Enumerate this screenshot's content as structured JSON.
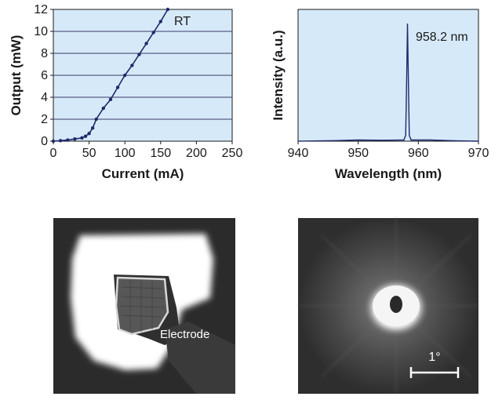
{
  "chart_data": [
    {
      "type": "line",
      "xlabel": "Current (mA)",
      "ylabel": "Output (mW)",
      "xlim": [
        0,
        250
      ],
      "ylim": [
        0,
        12
      ],
      "xticks": [
        0,
        50,
        100,
        150,
        200,
        250
      ],
      "yticks": [
        0,
        2,
        4,
        6,
        8,
        10,
        12
      ],
      "grid": "horizontal",
      "annotation": "RT",
      "colors": {
        "background": "#d6e9f8",
        "line": "#1f2a6b",
        "grid": "#3a3a6a"
      },
      "series": [
        {
          "x": [
            0,
            10,
            20,
            30,
            40,
            45,
            50,
            55,
            60,
            70,
            80,
            90,
            100,
            110,
            120,
            130,
            140,
            150,
            160
          ],
          "y": [
            0,
            0.05,
            0.1,
            0.2,
            0.3,
            0.45,
            0.7,
            1.2,
            2.0,
            3.0,
            3.8,
            4.9,
            6.0,
            6.9,
            7.9,
            8.9,
            9.9,
            10.9,
            12.0
          ]
        }
      ]
    },
    {
      "type": "line",
      "xlabel": "Wavelength (nm)",
      "ylabel": "Intensity (a.u.)",
      "xlim": [
        940,
        970
      ],
      "ylim": [
        0,
        1.12
      ],
      "xticks": [
        940,
        950,
        960,
        970
      ],
      "annotation": "958.2 nm",
      "colors": {
        "background": "#d6e9f8",
        "line": "#1f2a6b"
      },
      "series": [
        {
          "x": [
            940,
            946,
            950,
            954,
            957.6,
            957.9,
            958.05,
            958.2,
            958.35,
            958.5,
            958.8,
            962,
            966,
            970
          ],
          "y": [
            0,
            0.005,
            0.01,
            0.008,
            0.01,
            0.05,
            0.5,
            1.0,
            0.5,
            0.05,
            0.01,
            0.01,
            0.004,
            0
          ]
        }
      ]
    }
  ],
  "images": {
    "nearfield": {
      "label": "Electrode"
    },
    "farfield": {
      "scalebar_label": "1°"
    }
  }
}
